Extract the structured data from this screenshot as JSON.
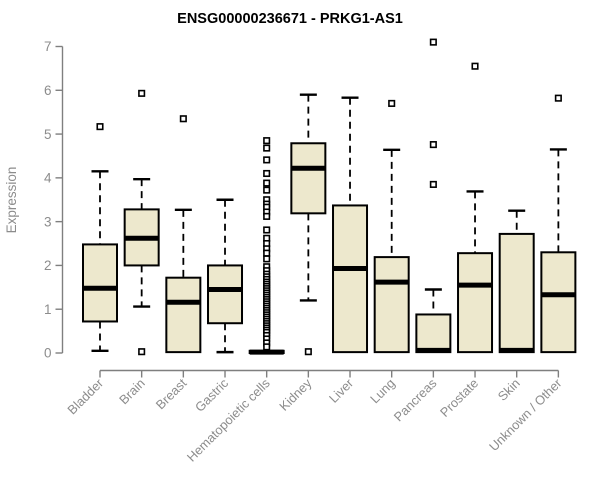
{
  "chart_data": {
    "type": "boxplot",
    "title": "ENSG00000236671 - PRKG1-AS1",
    "xlabel": "",
    "ylabel": "Expression",
    "ylim": [
      0,
      7
    ],
    "yticks": [
      "0",
      "1",
      "2",
      "3",
      "4",
      "5",
      "6",
      "7"
    ],
    "grid": false,
    "legend": "none",
    "categories": [
      "Bladder",
      "Brain",
      "Breast",
      "Gastric",
      "Hematopoietic cells",
      "Kidney",
      "Liver",
      "Lung",
      "Pancreas",
      "Prostate",
      "Skin",
      "Unknown / Other"
    ],
    "boxes": [
      {
        "category": "Bladder",
        "low": 0.05,
        "q1": 0.72,
        "median": 1.48,
        "q3": 2.48,
        "high": 4.15,
        "outliers": [
          5.17
        ]
      },
      {
        "category": "Brain",
        "low": 1.06,
        "q1": 2.0,
        "median": 2.62,
        "q3": 3.28,
        "high": 3.97,
        "outliers": [
          5.93,
          0.03
        ]
      },
      {
        "category": "Breast",
        "low": 0.02,
        "q1": 0.02,
        "median": 1.16,
        "q3": 1.72,
        "high": 3.27,
        "outliers": [
          5.35
        ]
      },
      {
        "category": "Gastric",
        "low": 0.02,
        "q1": 0.68,
        "median": 1.45,
        "q3": 2.0,
        "high": 3.5,
        "outliers": []
      },
      {
        "category": "Hematopoietic cells",
        "low": 0.0,
        "q1": 0.0,
        "median": 0.02,
        "q3": 0.05,
        "high": 0.05,
        "outliers": [
          4.85,
          4.68,
          4.41,
          4.1,
          3.88,
          3.72,
          3.5,
          3.4,
          3.33,
          3.22,
          3.12,
          2.81,
          2.62,
          2.5,
          2.38,
          2.28,
          2.15,
          1.97,
          1.88,
          1.8,
          1.74,
          1.68,
          1.62,
          1.57,
          1.52,
          1.47,
          1.42,
          1.37,
          1.32,
          1.27,
          1.22,
          1.17,
          1.12,
          1.07,
          1.02,
          0.97,
          0.92,
          0.87,
          0.82,
          0.77,
          0.72,
          0.67,
          0.62,
          0.57,
          0.52,
          0.47,
          0.4,
          0.32,
          0.23,
          0.14
        ]
      },
      {
        "category": "Kidney",
        "low": 1.2,
        "q1": 3.19,
        "median": 4.22,
        "q3": 4.79,
        "high": 5.9,
        "outliers": [
          0.03
        ]
      },
      {
        "category": "Liver",
        "low": 0.02,
        "q1": 0.02,
        "median": 1.93,
        "q3": 3.37,
        "high": 5.83,
        "outliers": []
      },
      {
        "category": "Lung",
        "low": 0.02,
        "q1": 0.02,
        "median": 1.62,
        "q3": 2.19,
        "high": 4.64,
        "outliers": [
          5.7
        ]
      },
      {
        "category": "Pancreas",
        "low": 0.02,
        "q1": 0.02,
        "median": 0.06,
        "q3": 0.88,
        "high": 1.45,
        "outliers": [
          3.85,
          4.76,
          7.1
        ]
      },
      {
        "category": "Prostate",
        "low": 0.02,
        "q1": 0.02,
        "median": 1.55,
        "q3": 2.28,
        "high": 3.69,
        "outliers": [
          6.55
        ]
      },
      {
        "category": "Skin",
        "low": 0.02,
        "q1": 0.02,
        "median": 0.06,
        "q3": 2.72,
        "high": 3.25,
        "outliers": []
      },
      {
        "category": "Unknown / Other",
        "low": 0.02,
        "q1": 0.02,
        "median": 1.33,
        "q3": 2.3,
        "high": 4.65,
        "outliers": [
          5.82
        ]
      }
    ],
    "colors": {
      "box_fill": "#EDE8CD",
      "box_border": "#000000",
      "median": "#000000",
      "whisker": "#000000",
      "outlier_fill": "#FFFFFF",
      "outlier_border": "#000000",
      "axis_line": "#7F7F7F",
      "tick_text": "#8C8C8C",
      "title_text": "#000000",
      "background": "#FFFFFF"
    }
  }
}
